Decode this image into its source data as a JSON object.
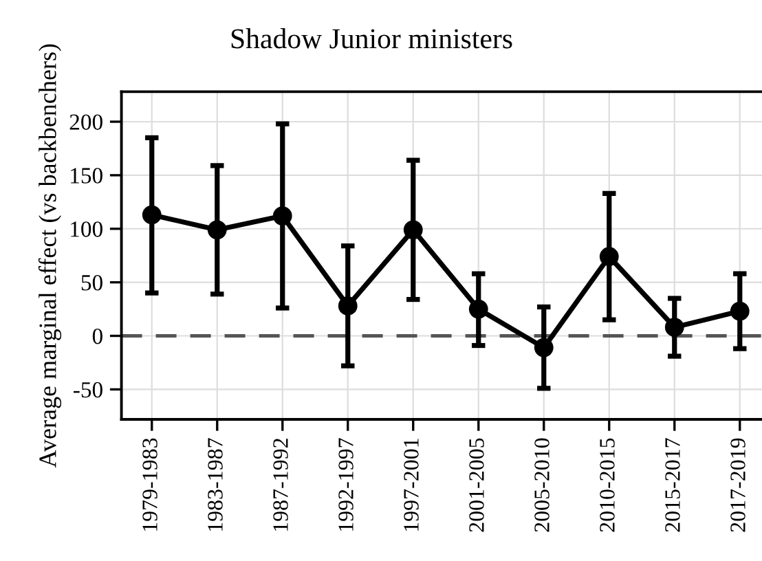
{
  "chart_data": {
    "type": "line",
    "title": "Shadow Junior ministers",
    "ylabel": "Average marginal effect (vs backbenchers)",
    "categories": [
      "1979-1983",
      "1983-1987",
      "1987-1992",
      "1992-1997",
      "1997-2001",
      "2001-2005",
      "2005-2010",
      "2010-2015",
      "2015-2017",
      "2017-2019"
    ],
    "series": [
      {
        "color": "#000000",
        "values": [
          113,
          99,
          112,
          28,
          99,
          25,
          -11,
          74,
          8,
          23
        ],
        "errors": [
          [
            40,
            185
          ],
          [
            39,
            159
          ],
          [
            26,
            198
          ],
          [
            -28,
            84
          ],
          [
            34,
            164
          ],
          [
            -9,
            58
          ],
          [
            -49,
            27
          ],
          [
            15,
            133
          ],
          [
            -19,
            35
          ],
          [
            -12,
            58
          ]
        ]
      }
    ],
    "ylim": [
      -78,
      228
    ],
    "yticks": [
      -50,
      0,
      50,
      100,
      150,
      200
    ],
    "ref_lines": [
      {
        "axis": "y",
        "value": 0,
        "color": "#555555",
        "line_style": "dashed"
      }
    ],
    "grid": true,
    "marker": "circle",
    "line_style": "solid"
  }
}
